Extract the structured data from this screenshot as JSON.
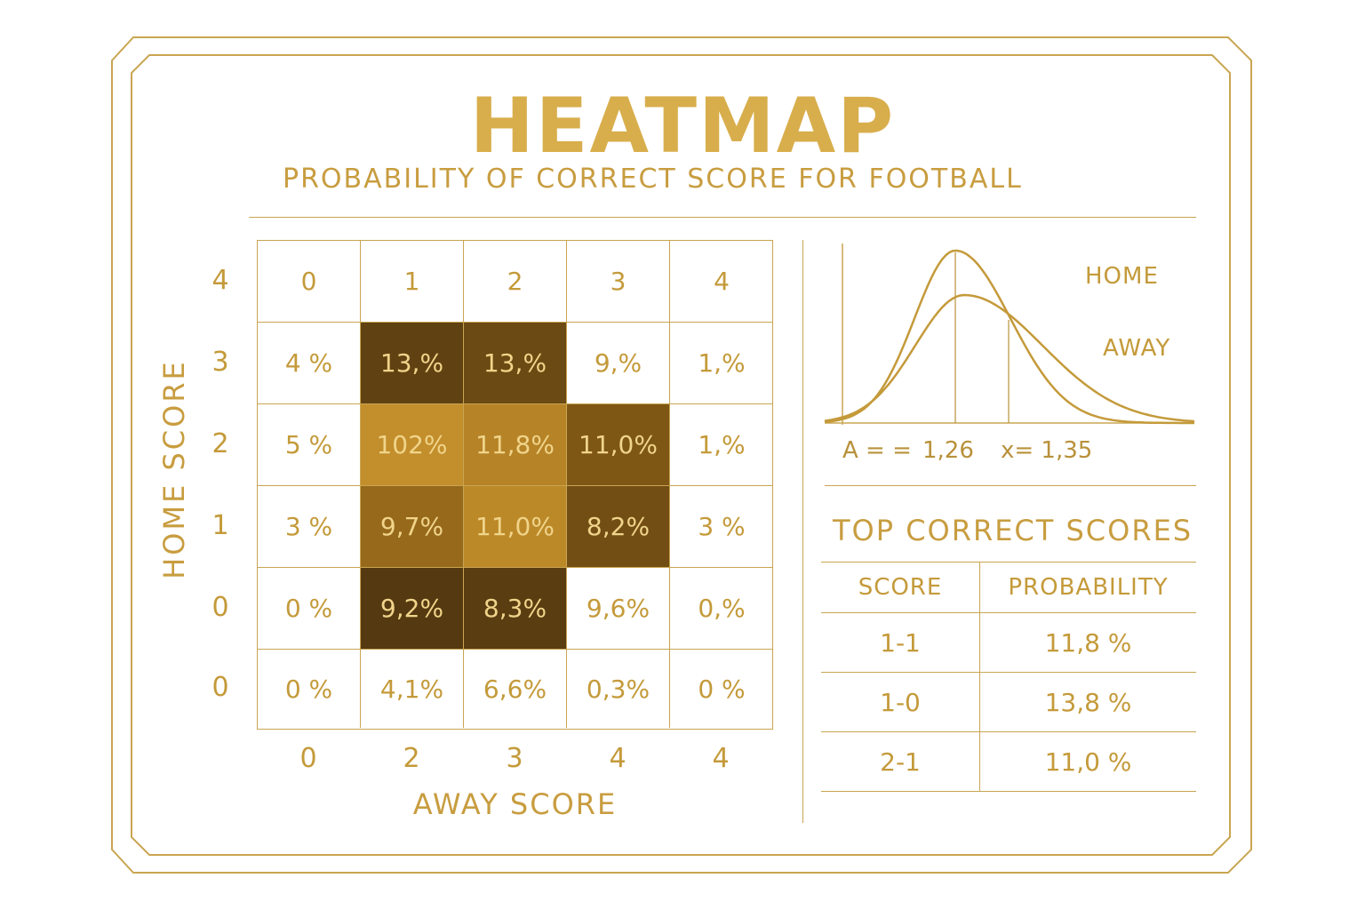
{
  "header": {
    "title": "HEATMAP",
    "subtitle": "PROBABILITY OF CORRECT SCORE FOR FOOTBALL"
  },
  "colors": {
    "gold": "#c49a3a",
    "title_gold": "#d8ae4c",
    "cell_dark": "#4e3510",
    "cell_mid": "#8a5f16",
    "cell_light": "#c9932e"
  },
  "chart_data": [
    {
      "type": "heatmap",
      "xlabel": "AWAY SCORE",
      "ylabel": "HOME SCORE",
      "x_tick_labels": [
        "0",
        "2",
        "3",
        "4",
        "4"
      ],
      "y_tick_labels": [
        "4",
        "3",
        "2",
        "1",
        "0",
        "0"
      ],
      "rows": [
        {
          "cells": [
            "0",
            "1",
            "2",
            "3",
            "4"
          ],
          "shade": [
            0,
            0,
            0,
            0,
            0
          ]
        },
        {
          "cells": [
            "4 %",
            "13,%",
            "13,%",
            "9,%",
            "1,%"
          ],
          "shade": [
            0,
            0.15,
            0.25,
            0,
            0
          ]
        },
        {
          "cells": [
            "5 %",
            "102%",
            "11,8%",
            "11,0%",
            "1,%"
          ],
          "shade": [
            0,
            0.95,
            0.85,
            0.4,
            0
          ]
        },
        {
          "cells": [
            "3 %",
            "9,7%",
            "11,0%",
            "8,2%",
            "3 %"
          ],
          "shade": [
            0,
            0.6,
            0.9,
            0.3,
            0
          ]
        },
        {
          "cells": [
            "0 %",
            "9,2%",
            "8,3%",
            "9,6%",
            "0,%"
          ],
          "shade": [
            0,
            0.05,
            0.1,
            0,
            0
          ]
        },
        {
          "cells": [
            "0 %",
            "4,1%",
            "6,6%",
            "0,3%",
            "0 %"
          ],
          "shade": [
            0,
            0,
            0,
            0,
            0
          ]
        }
      ]
    },
    {
      "type": "line",
      "series": [
        {
          "name": "HOME",
          "mean": 1.26
        },
        {
          "name": "AWAY",
          "mean": 1.35
        }
      ],
      "params_text": [
        "A = =",
        "1,26",
        "x= 1,35"
      ]
    },
    {
      "type": "table",
      "title": "TOP CORRECT SCORES",
      "columns": [
        "SCORE",
        "PROBABILITY"
      ],
      "rows": [
        [
          "1-1",
          "11,8 %"
        ],
        [
          "1-0",
          "13,8 %"
        ],
        [
          "2-1",
          "11,0 %"
        ]
      ]
    }
  ]
}
